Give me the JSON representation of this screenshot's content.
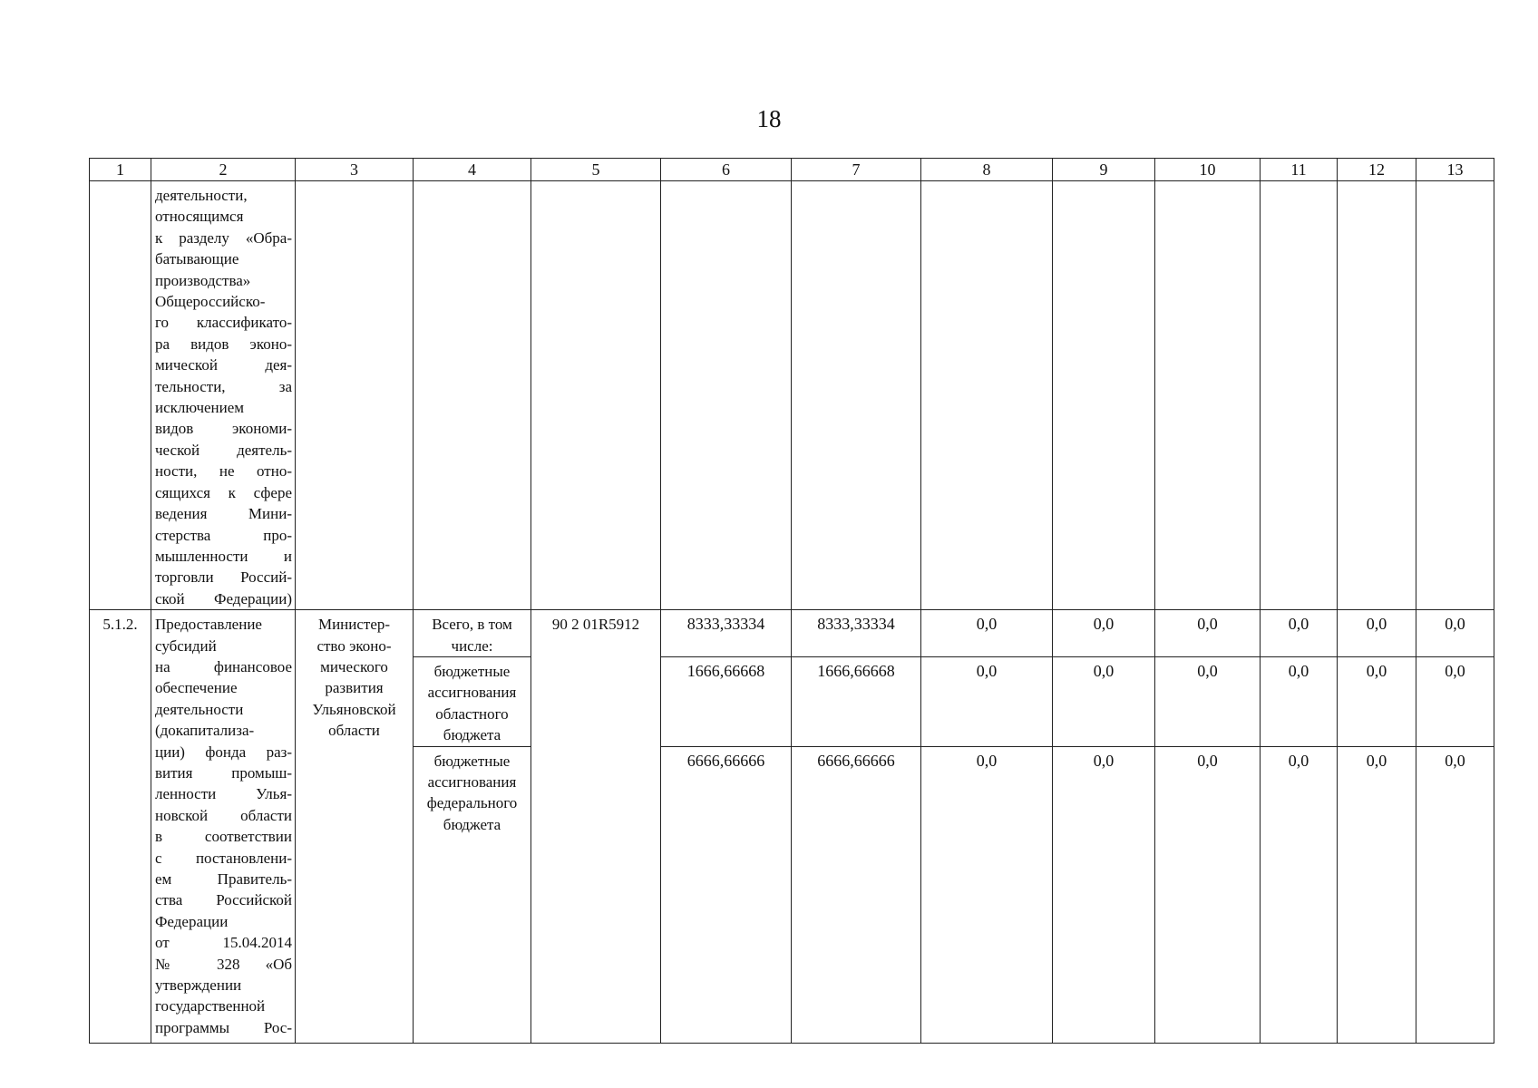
{
  "page_number": "18",
  "header": [
    "1",
    "2",
    "3",
    "4",
    "5",
    "6",
    "7",
    "8",
    "9",
    "10",
    "11",
    "12",
    "13"
  ],
  "continued_row": {
    "col2_lines": [
      "деятельности,",
      "относящимся",
      "к разделу «Обра-",
      "батывающие",
      "производства»",
      "Общероссийско-",
      "го классификато-",
      "ра видов эконо-",
      "мической дея-",
      "тельности, за",
      "исключением",
      "видов экономи-",
      "ческой деятель-",
      "ности, не отно-",
      "сящихся к сфере",
      "ведения Мини-",
      "стерства про-",
      "мышленности и",
      "торговли Россий-",
      "ской Федерации)"
    ]
  },
  "row_512": {
    "number": "5.1.2.",
    "col2_lines": [
      "Предоставление",
      "субсидий",
      "на финансовое",
      "обеспечение",
      "деятельности",
      "(докапитализа-",
      "ции) фонда раз-",
      "вития промыш-",
      "ленности Улья-",
      "новской области",
      "в соответствии",
      "с постановлени-",
      "ем Правитель-",
      "ства Российской",
      "Федерации",
      "от 15.04.2014",
      "№ 328 «Об",
      "утверждении",
      "государственной",
      "программы Рос-"
    ],
    "col3_lines": [
      "Министер-",
      "ство эконо-",
      "мического",
      "развития",
      "Ульяновской",
      "области"
    ],
    "code": "90 2 01R5912",
    "subrows": [
      {
        "source_lines": [
          "Всего, в том",
          "числе:"
        ],
        "values": [
          "8333,33334",
          "8333,33334",
          "0,0",
          "0,0",
          "0,0",
          "0,0",
          "0,0",
          "0,0"
        ]
      },
      {
        "source_lines": [
          "бюджетные",
          "ассигнования",
          "областного",
          "бюджета"
        ],
        "values": [
          "1666,66668",
          "1666,66668",
          "0,0",
          "0,0",
          "0,0",
          "0,0",
          "0,0",
          "0,0"
        ]
      },
      {
        "source_lines": [
          "бюджетные",
          "ассигнования",
          "федерального",
          "бюджета"
        ],
        "values": [
          "6666,66666",
          "6666,66666",
          "0,0",
          "0,0",
          "0,0",
          "0,0",
          "0,0",
          "0,0"
        ]
      }
    ]
  }
}
